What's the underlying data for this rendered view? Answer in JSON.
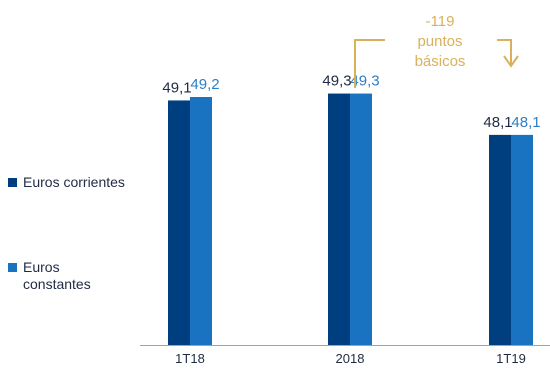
{
  "chart_data": {
    "type": "bar",
    "title": "",
    "xlabel": "",
    "ylabel": "",
    "categories": [
      "1T18",
      "2018",
      "1T19"
    ],
    "series": [
      {
        "name": "Euros corrientes",
        "values": [
          49.1,
          49.3,
          48.1
        ],
        "labels": [
          "49,1",
          "49,3",
          "48,1"
        ]
      },
      {
        "name": "Euros constantes",
        "values": [
          49.2,
          49.3,
          48.1
        ],
        "labels": [
          "49,2",
          "49,3",
          "48,1"
        ]
      }
    ],
    "ylim": [
      42,
      51
    ],
    "grid": false,
    "legend_position": "left",
    "annotation": {
      "lines": [
        "-119",
        "puntos",
        "básicos"
      ]
    }
  },
  "colors": {
    "series_corrientes": "#003f7f",
    "series_constantes": "#1a73c0",
    "label_corrientes": "#1f2a44",
    "label_constantes": "#2d7fc6",
    "axis": "#9aa4b2",
    "annotation": "#d9b15c",
    "text": "#1f2a44"
  }
}
